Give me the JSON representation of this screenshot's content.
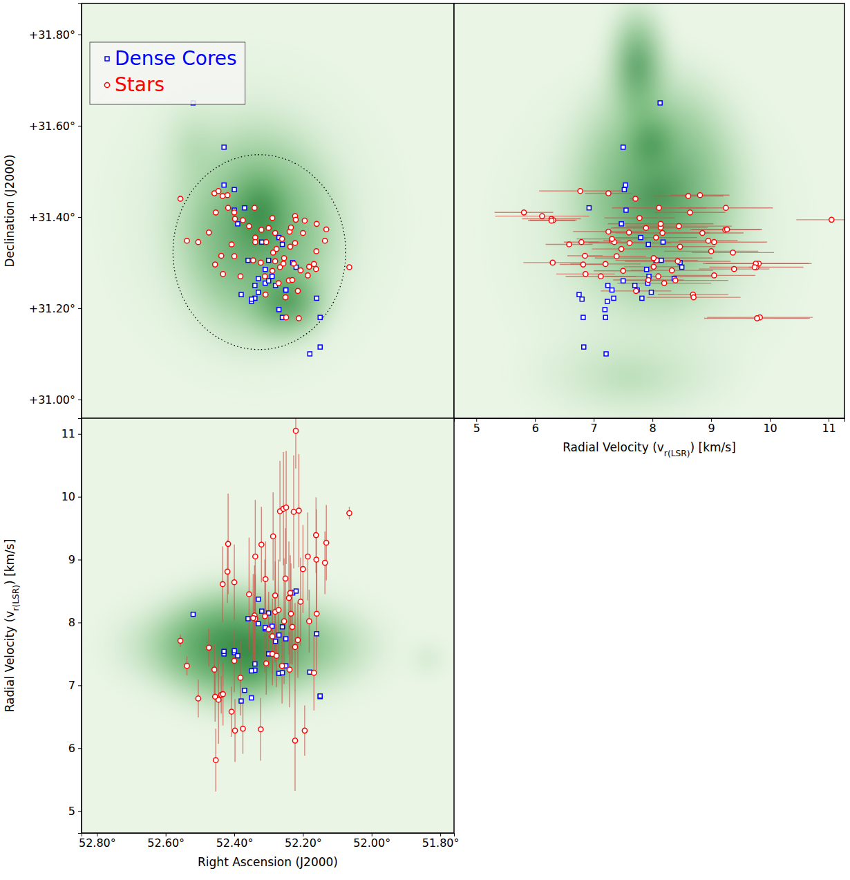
{
  "chart_data": [
    {
      "type": "scatter",
      "ylabel": "Declination (J2000)",
      "xlim": [
        52.845,
        51.76
      ],
      "ylim": [
        30.959,
        31.868
      ],
      "yticks": [
        {
          "value": 31,
          "label": "+31.00°"
        },
        {
          "value": 31.2,
          "label": "+31.20°"
        },
        {
          "value": 31.4,
          "label": "+31.40°"
        },
        {
          "value": 31.6,
          "label": "+31.60°"
        },
        {
          "value": 31.8,
          "label": "+31.80°"
        }
      ],
      "tick_labels": "y",
      "legend": "upper left",
      "region": {
        "x": 52.327,
        "y": 31.323,
        "x_radius": 0.2515,
        "y_radius": 0.2136,
        "line_style": "dotted"
      },
      "series": [
        {
          "name": "Dense Cores",
          "color": "#0000ff",
          "marker": "square",
          "x": [
            52.52,
            52.43,
            52.43,
            52.4,
            52.37,
            52.4,
            52.39,
            52.27,
            52.32,
            52.26,
            52.36,
            52.3,
            52.31,
            52.23,
            52.22,
            52.29,
            52.33,
            52.31,
            52.28,
            52.34,
            52.25,
            52.33,
            52.34,
            52.35,
            52.16,
            52.25,
            52.38,
            52.35,
            52.27,
            52.26,
            52.15,
            52.18,
            52.15,
            52.3
          ],
          "y": [
            31.65,
            31.553,
            31.47,
            31.46,
            31.42,
            31.415,
            31.385,
            31.355,
            31.345,
            31.34,
            31.305,
            31.305,
            31.285,
            31.3,
            31.29,
            31.27,
            31.265,
            31.255,
            31.25,
            31.25,
            31.24,
            31.235,
            31.222,
            31.215,
            31.222,
            31.24,
            31.23,
            31.22,
            31.197,
            31.18,
            31.18,
            31.1,
            31.115,
            31.26
          ]
        },
        {
          "name": "Stars",
          "color": "#ff0000",
          "marker": "circle",
          "x": [
            52.557,
            52.538,
            52.505,
            52.474,
            52.458,
            52.446,
            52.434,
            52.42,
            52.454,
            52.418,
            52.398,
            52.375,
            52.357,
            52.341,
            52.321,
            52.339,
            52.307,
            52.408,
            52.438,
            52.456,
            52.433,
            52.382,
            52.345,
            52.339,
            52.287,
            52.281,
            52.289,
            52.311,
            52.309,
            52.281,
            52.267,
            52.257,
            52.277,
            52.261,
            52.255,
            52.237,
            52.227,
            52.223,
            52.239,
            52.235,
            52.223,
            52.2,
            52.241,
            52.251,
            52.249,
            52.215,
            52.186,
            52.207,
            52.231,
            52.168,
            52.161,
            52.182,
            52.162,
            52.212,
            52.16,
            52.065,
            52.136,
            52.132,
            52.289,
            52.4,
            52.3,
            52.221,
            52.271,
            52.323,
            52.4,
            52.195
          ],
          "y": [
            31.44,
            31.348,
            31.345,
            31.366,
            31.452,
            31.457,
            31.446,
            31.448,
            31.41,
            31.42,
            31.396,
            31.393,
            31.38,
            31.42,
            31.372,
            31.355,
            31.345,
            31.34,
            31.315,
            31.296,
            31.275,
            31.27,
            31.305,
            31.345,
            31.322,
            31.365,
            31.282,
            31.27,
            31.23,
            31.303,
            31.29,
            31.298,
            31.33,
            31.352,
            31.31,
            31.335,
            31.298,
            31.343,
            31.368,
            31.377,
            31.402,
            31.365,
            31.261,
            31.224,
            31.18,
            31.238,
            31.272,
            31.283,
            31.262,
            31.297,
            31.325,
            31.291,
            31.286,
            31.178,
            31.385,
            31.29,
            31.348,
            31.373,
            31.398,
            31.314,
            31.376,
            31.394,
            31.255,
            31.3,
            31.41,
            31.392
          ]
        }
      ]
    },
    {
      "type": "scatter",
      "xlabel": "Radial Velocity (vr(LSR)) [km/s]",
      "xlim": [
        4.62,
        11.27
      ],
      "ylim": [
        30.959,
        31.868
      ],
      "xticks": [
        5,
        6,
        7,
        8,
        9,
        10,
        11
      ],
      "tick_labels": "x",
      "series": [
        {
          "color": "#0000ff",
          "marker": "square",
          "x": [
            8.13,
            7.5,
            7.54,
            7.52,
            6.92,
            7.55,
            7.47,
            7.8,
            8.18,
            7.93,
            8.06,
            8.15,
            7.9,
            8.47,
            8.5,
            7.94,
            8.37,
            7.92,
            7.7,
            7.24,
            7.31,
            7.98,
            7.34,
            7.23,
            7.82,
            7.74,
            6.75,
            6.8,
            7.19,
            7.2,
            6.82,
            7.21,
            6.83,
            7.5
          ],
          "y": [
            31.65,
            31.553,
            31.47,
            31.46,
            31.42,
            31.415,
            31.385,
            31.355,
            31.345,
            31.34,
            31.305,
            31.305,
            31.285,
            31.3,
            31.29,
            31.27,
            31.265,
            31.255,
            31.25,
            31.25,
            31.24,
            31.235,
            31.222,
            31.215,
            31.222,
            31.24,
            31.23,
            31.22,
            31.197,
            31.18,
            31.18,
            31.1,
            31.115,
            31.26
          ]
        },
        {
          "color": "#ff0000",
          "marker": "circle",
          "x": [
            7.71,
            7.31,
            6.79,
            7.6,
            7.25,
            6.77,
            8.61,
            8.81,
            5.81,
            9.25,
            6.28,
            6.31,
            8.45,
            8.11,
            9.24,
            8.06,
            7.35,
            6.58,
            6.85,
            6.82,
            6.86,
            7.12,
            8.07,
            9.05,
            9.37,
            8.17,
            7.5,
            8.1,
            8.69,
            8.43,
            9.77,
            9.81,
            7.47,
            7.31,
            8.02,
            8.47,
            9.76,
            7.61,
            7.25,
            8.14,
            6.12,
            8.85,
            8.39,
            8.7,
            9.83,
            7.72,
            9.05,
            8.33,
            7.93,
            7.2,
            9.0,
            8.02,
            9.39,
            9.78,
            8.14,
            9.74,
            8.95,
            9.27,
            7.78,
            7.39,
            7.89,
            11.05,
            8.2,
            6.3,
            8.64,
            6.28
          ],
          "x_errors": [
            0.1,
            0.15,
            0.3,
            0.3,
            0.4,
            0.7,
            0.6,
            0.5,
            0.5,
            0.8,
            0.5,
            0.4,
            0.9,
            0.8,
            0.6,
            0.7,
            0.5,
            0.4,
            0.3,
            0.4,
            0.5,
            0.6,
            0.7,
            0.9,
            0.7,
            0.8,
            0.5,
            0.9,
            0.6,
            0.9,
            0.8,
            0.9,
            0.5,
            0.6,
            1.0,
            0.6,
            0.9,
            0.7,
            0.6,
            0.8,
            0.8,
            0.7,
            0.9,
            0.8,
            0.9,
            0.6,
            0.7,
            0.7,
            0.6,
            0.6,
            0.8,
            0.5,
            0.6,
            0.9,
            0.9,
            0.1,
            0.5,
            0.6,
            0.6,
            0.5,
            0.6,
            0.6,
            0.8,
            0.5,
            0.6,
            0.4
          ],
          "y": [
            31.44,
            31.348,
            31.345,
            31.366,
            31.452,
            31.457,
            31.446,
            31.448,
            31.41,
            31.42,
            31.396,
            31.393,
            31.38,
            31.42,
            31.372,
            31.355,
            31.345,
            31.34,
            31.315,
            31.296,
            31.275,
            31.27,
            31.305,
            31.345,
            31.322,
            31.365,
            31.282,
            31.27,
            31.23,
            31.303,
            31.29,
            31.298,
            31.33,
            31.352,
            31.31,
            31.335,
            31.298,
            31.343,
            31.368,
            31.377,
            31.402,
            31.365,
            31.261,
            31.224,
            31.18,
            31.238,
            31.272,
            31.283,
            31.262,
            31.297,
            31.325,
            31.291,
            31.286,
            31.178,
            31.385,
            31.29,
            31.348,
            31.373,
            31.398,
            31.314,
            31.376,
            31.394,
            31.255,
            31.3,
            31.41,
            31.392
          ]
        }
      ]
    },
    {
      "type": "scatter",
      "xlabel": "Right Ascension (J2000)",
      "ylabel": "Radial Velocity (vr(LSR)) [km/s]",
      "xlim": [
        52.845,
        51.76
      ],
      "ylim": [
        4.65,
        11.25
      ],
      "xticks": [
        {
          "value": 52.8,
          "label": "52.80°"
        },
        {
          "value": 52.6,
          "label": "52.60°"
        },
        {
          "value": 52.4,
          "label": "52.40°"
        },
        {
          "value": 52.2,
          "label": "52.20°"
        },
        {
          "value": 52,
          "label": "52.00°"
        },
        {
          "value": 51.8,
          "label": "51.80°"
        }
      ],
      "yticks": [
        5,
        6,
        7,
        8,
        9,
        10,
        11
      ],
      "series": [
        {
          "color": "#0000ff",
          "marker": "square",
          "x": [
            52.52,
            52.43,
            52.43,
            52.4,
            52.37,
            52.4,
            52.39,
            52.27,
            52.32,
            52.26,
            52.36,
            52.3,
            52.31,
            52.23,
            52.22,
            52.29,
            52.33,
            52.31,
            52.28,
            52.34,
            52.25,
            52.33,
            52.34,
            52.35,
            52.16,
            52.25,
            52.38,
            52.35,
            52.27,
            52.26,
            52.15,
            52.18,
            52.15,
            52.3
          ],
          "y": [
            8.13,
            7.5,
            7.54,
            7.52,
            6.92,
            7.55,
            7.47,
            7.8,
            8.18,
            7.93,
            8.06,
            8.15,
            7.9,
            8.47,
            8.5,
            7.94,
            8.37,
            7.92,
            7.7,
            7.24,
            7.31,
            7.98,
            7.34,
            7.23,
            7.82,
            7.74,
            6.75,
            6.8,
            7.19,
            7.2,
            6.82,
            7.21,
            6.83,
            7.5
          ]
        },
        {
          "color": "#ff0000",
          "marker": "circle",
          "x": [
            52.557,
            52.538,
            52.505,
            52.474,
            52.458,
            52.446,
            52.434,
            52.42,
            52.454,
            52.418,
            52.398,
            52.375,
            52.357,
            52.341,
            52.321,
            52.339,
            52.307,
            52.408,
            52.438,
            52.456,
            52.433,
            52.382,
            52.345,
            52.339,
            52.287,
            52.281,
            52.289,
            52.311,
            52.309,
            52.281,
            52.267,
            52.257,
            52.277,
            52.261,
            52.255,
            52.237,
            52.227,
            52.223,
            52.239,
            52.235,
            52.223,
            52.2,
            52.241,
            52.251,
            52.249,
            52.215,
            52.186,
            52.207,
            52.231,
            52.168,
            52.161,
            52.182,
            52.162,
            52.212,
            52.16,
            52.065,
            52.136,
            52.132,
            52.289,
            52.4,
            52.3,
            52.221,
            52.271,
            52.323,
            52.4,
            52.195
          ],
          "y": [
            7.71,
            7.31,
            6.79,
            7.6,
            7.25,
            6.77,
            8.61,
            8.81,
            5.81,
            9.25,
            6.28,
            6.31,
            8.45,
            8.11,
            9.24,
            8.06,
            7.35,
            6.58,
            6.85,
            6.82,
            6.86,
            7.12,
            8.07,
            9.05,
            9.37,
            8.17,
            7.5,
            8.1,
            8.69,
            8.43,
            9.77,
            9.81,
            7.47,
            7.31,
            8.02,
            8.47,
            9.76,
            7.61,
            7.25,
            8.14,
            6.12,
            8.85,
            8.39,
            8.7,
            9.83,
            7.72,
            9.05,
            8.33,
            7.93,
            7.2,
            9.0,
            8.02,
            9.39,
            9.78,
            8.14,
            9.74,
            8.95,
            9.27,
            7.78,
            7.39,
            7.89,
            11.05,
            8.2,
            6.3,
            8.64,
            6.28
          ],
          "y_errors": [
            0.1,
            0.15,
            0.3,
            0.3,
            0.4,
            0.7,
            0.6,
            0.5,
            0.5,
            0.8,
            0.5,
            0.4,
            0.9,
            0.8,
            0.6,
            0.7,
            0.5,
            0.4,
            0.3,
            0.4,
            0.5,
            0.6,
            0.7,
            0.9,
            0.7,
            0.8,
            0.5,
            0.9,
            0.6,
            0.9,
            0.8,
            0.9,
            0.5,
            0.6,
            1.0,
            0.6,
            0.9,
            0.7,
            0.6,
            0.8,
            0.8,
            0.7,
            0.9,
            0.8,
            0.9,
            0.6,
            0.7,
            0.7,
            0.6,
            0.6,
            0.8,
            0.5,
            0.6,
            0.9,
            0.9,
            0.1,
            0.5,
            0.6,
            0.6,
            0.5,
            0.6,
            0.6,
            0.8,
            0.5,
            0.6,
            0.4
          ]
        }
      ]
    }
  ]
}
